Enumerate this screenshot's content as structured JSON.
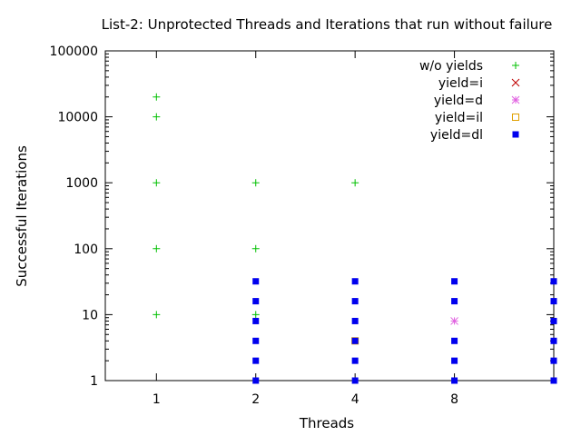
{
  "chart_data": {
    "type": "scatter",
    "title": "List-2: Unprotected Threads and Iterations that run without failure",
    "xlabel": "Threads",
    "ylabel": "Successful Iterations",
    "x_scale": "log2",
    "y_scale": "log10",
    "xlim": [
      0.7,
      16
    ],
    "ylim": [
      1,
      100000
    ],
    "x_ticks": [
      1,
      2,
      4,
      8
    ],
    "y_ticks": [
      1,
      10,
      100,
      1000,
      10000,
      100000
    ],
    "x_tick_labels": [
      "1",
      "2",
      "4",
      "8"
    ],
    "y_tick_labels": [
      "1",
      "10",
      "100",
      "1000",
      "10000",
      "100000"
    ],
    "grid": false,
    "legend_position": "top-right",
    "series": [
      {
        "name": "w/o yields",
        "color": "#00c000",
        "marker": "plus",
        "points": [
          [
            1,
            20000
          ],
          [
            1,
            10000
          ],
          [
            1,
            1000
          ],
          [
            1,
            100
          ],
          [
            1,
            10
          ],
          [
            2,
            1000
          ],
          [
            2,
            100
          ],
          [
            2,
            10
          ],
          [
            4,
            1000
          ]
        ]
      },
      {
        "name": "yield=i",
        "color": "#c00000",
        "marker": "cross",
        "points": []
      },
      {
        "name": "yield=d",
        "color": "#e060e0",
        "marker": "asterisk",
        "points": [
          [
            8,
            8
          ]
        ]
      },
      {
        "name": "yield=il",
        "color": "#e0a000",
        "marker": "open-square",
        "points": [
          [
            4,
            4
          ]
        ]
      },
      {
        "name": "yield=dl",
        "color": "#0000ee",
        "marker": "filled-square",
        "points": [
          [
            2,
            32
          ],
          [
            2,
            16
          ],
          [
            2,
            8
          ],
          [
            2,
            4
          ],
          [
            2,
            2
          ],
          [
            2,
            1
          ],
          [
            4,
            32
          ],
          [
            4,
            16
          ],
          [
            4,
            8
          ],
          [
            4,
            4
          ],
          [
            4,
            2
          ],
          [
            4,
            1
          ],
          [
            8,
            32
          ],
          [
            8,
            16
          ],
          [
            8,
            4
          ],
          [
            8,
            2
          ],
          [
            8,
            1
          ],
          [
            16,
            32
          ],
          [
            16,
            16
          ],
          [
            16,
            8
          ],
          [
            16,
            4
          ],
          [
            16,
            2
          ],
          [
            16,
            1
          ]
        ]
      }
    ]
  }
}
